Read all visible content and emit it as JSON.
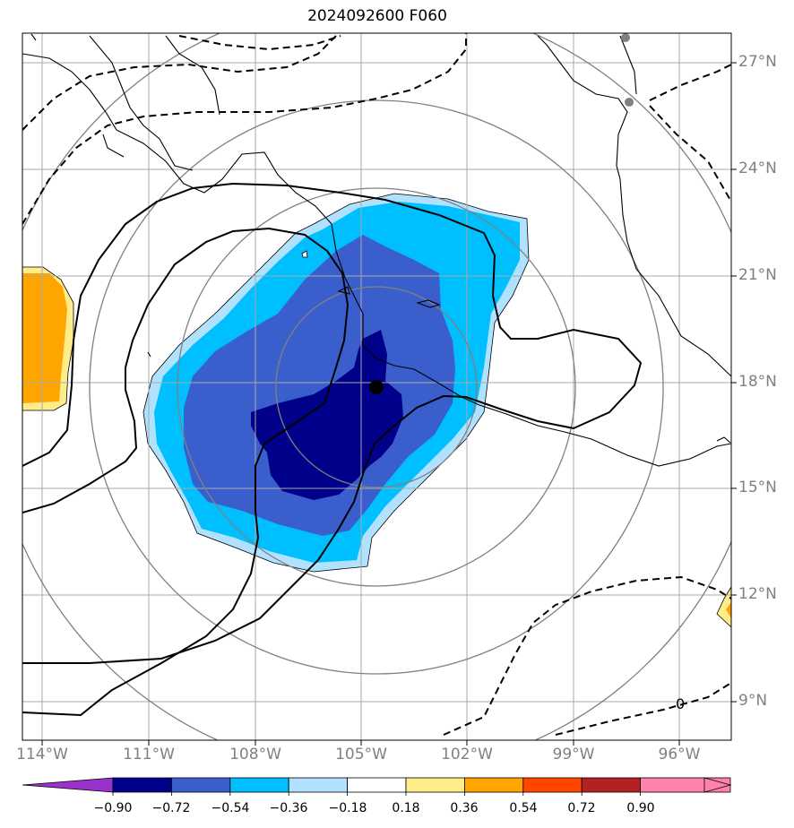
{
  "title": "2024092600 F060",
  "lat_labels": [
    "27°N",
    "24°N",
    "21°N",
    "18°N",
    "15°N",
    "12°N",
    "9°N"
  ],
  "lon_labels": [
    "114°W",
    "111°W",
    "108°W",
    "105°W",
    "102°W",
    "99°W",
    "96°W"
  ],
  "contour_label": "0",
  "colorbar": {
    "ticks": [
      "−0.90",
      "−0.72",
      "−0.54",
      "−0.36",
      "−0.18",
      "0.18",
      "0.36",
      "0.54",
      "0.72",
      "0.90"
    ],
    "colors": [
      "#9932cc",
      "#00008b",
      "#3a5fcd",
      "#00bfff",
      "#b0e2ff",
      "#ffffff",
      "#ffec8b",
      "#ffa500",
      "#ff4500",
      "#b22222",
      "#ff82ab"
    ]
  },
  "colors": {
    "dark_blue": "#00008b",
    "royal_blue": "#3a5fcd",
    "sky_blue": "#00bfff",
    "light_blue": "#b0e2ff",
    "light_yellow": "#ffec8b",
    "orange": "#ffa500",
    "grid": "#a9a9a9",
    "range_rings": "#808080"
  }
}
